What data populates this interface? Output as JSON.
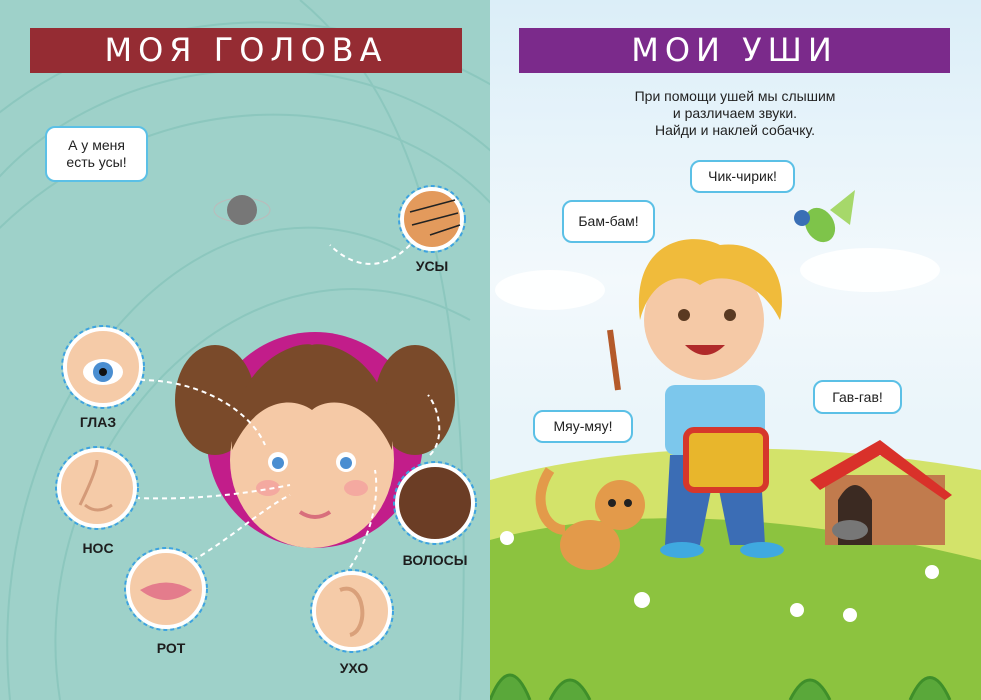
{
  "left_page": {
    "title": "МОЯ ГОЛОВА",
    "title_color": "#952c33",
    "speech_bubble": "А у меня есть усы!",
    "parts": [
      {
        "label": "УСЫ",
        "icon": "whiskers-icon"
      },
      {
        "label": "ГЛАЗ",
        "icon": "eye-icon"
      },
      {
        "label": "НОС",
        "icon": "nose-icon"
      },
      {
        "label": "РОТ",
        "icon": "mouth-icon"
      },
      {
        "label": "УХО",
        "icon": "ear-icon"
      },
      {
        "label": "ВОЛОСЫ",
        "icon": "hair-icon"
      }
    ]
  },
  "right_page": {
    "title": "МОИ УШИ",
    "title_color": "#7b2a8b",
    "instruction_lines": [
      "При помощи ушей мы слышим",
      "и различаем звуки.",
      "Найди и наклей собачку."
    ],
    "bubbles": {
      "drum": "Бам-бам!",
      "bird": "Чик-чирик!",
      "cat": "Мяу-мяу!",
      "dog": "Гав-гав!"
    }
  }
}
